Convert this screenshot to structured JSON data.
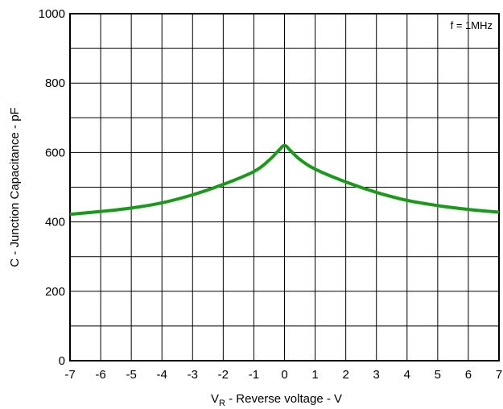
{
  "chart_data": {
    "type": "line",
    "xlabel_main": "V",
    "xlabel_sub": "R",
    "xlabel_rest": " - Reverse voltage - V",
    "ylabel": "C - Junction Capacitance - pF",
    "annotation": "f = 1MHz",
    "xlim": [
      -7,
      7
    ],
    "ylim": [
      0,
      1000
    ],
    "x_ticks": [
      -7,
      -6,
      -5,
      -4,
      -3,
      -2,
      -1,
      0,
      1,
      2,
      3,
      4,
      5,
      6,
      7
    ],
    "x_tick_labels": [
      "-7",
      "-6",
      "-5",
      "-4",
      "-3",
      "-2",
      "-1",
      "0",
      "1",
      "2",
      "3",
      "4",
      "5",
      "6",
      "7"
    ],
    "y_tick_labels": [
      "0",
      "200",
      "400",
      "600",
      "800",
      "1000"
    ],
    "y_tick_values": [
      0,
      200,
      400,
      600,
      800,
      1000
    ],
    "y_grid_step": 100,
    "grid": true,
    "series": [
      {
        "color": "#1a9a1a",
        "x": [
          -7,
          -6,
          -5,
          -4,
          -3,
          -2,
          -1,
          -0.5,
          -0.2,
          0,
          0.2,
          0.5,
          1,
          2,
          3,
          4,
          5,
          6,
          7
        ],
        "y": [
          422,
          430,
          440,
          455,
          478,
          508,
          545,
          578,
          605,
          620,
          605,
          580,
          552,
          515,
          485,
          462,
          447,
          436,
          428
        ]
      }
    ]
  }
}
